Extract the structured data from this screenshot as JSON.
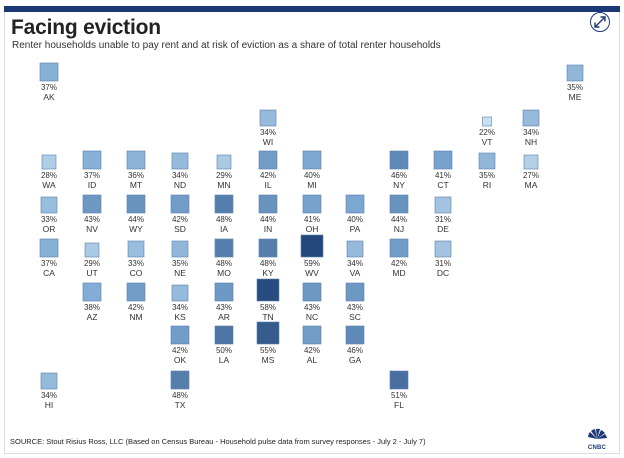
{
  "header": {
    "title": "Facing eviction",
    "subtitle": "Renter households unable to pay rent and at risk of eviction as a share of total renter households"
  },
  "footer": {
    "source": "SOURCE:  Stout Risius Ross, LLC (Based on Census Bureau - Household pulse data from survey responses - July 2 - July 7)",
    "logo_text": "CNBC"
  },
  "icons": {
    "expand": "expand-arrows-icon",
    "logo": "peacock-logo-icon"
  },
  "colors": {
    "scale_light": "#c8e0f0",
    "scale_mid": "#7ba7d2",
    "scale_dark": "#23477a",
    "accent": "#1b3a75"
  },
  "chart_data": {
    "type": "tile-map",
    "title": "Facing eviction",
    "subtitle": "Renter households unable to pay rent and at risk of eviction as a share of total renter households",
    "unit": "%",
    "values": {
      "AK": 37,
      "ME": 35,
      "WI": 34,
      "VT": 22,
      "NH": 34,
      "WA": 28,
      "ID": 37,
      "MT": 36,
      "ND": 34,
      "MN": 29,
      "IL": 42,
      "MI": 40,
      "NY": 46,
      "CT": 41,
      "RI": 35,
      "MA": 27,
      "OR": 33,
      "NV": 43,
      "WY": 44,
      "SD": 42,
      "IA": 48,
      "IN": 44,
      "OH": 41,
      "PA": 40,
      "NJ": 44,
      "DE": 31,
      "CA": 37,
      "UT": 29,
      "CO": 33,
      "NE": 35,
      "MO": 48,
      "KY": 48,
      "WV": 59,
      "VA": 34,
      "MD": 42,
      "DC": 31,
      "AZ": 38,
      "NM": 42,
      "KS": 34,
      "AR": 43,
      "TN": 58,
      "NC": 43,
      "SC": 43,
      "OK": 42,
      "LA": 50,
      "MS": 55,
      "AL": 42,
      "GA": 46,
      "HI": 34,
      "TX": 48,
      "FL": 51
    }
  }
}
